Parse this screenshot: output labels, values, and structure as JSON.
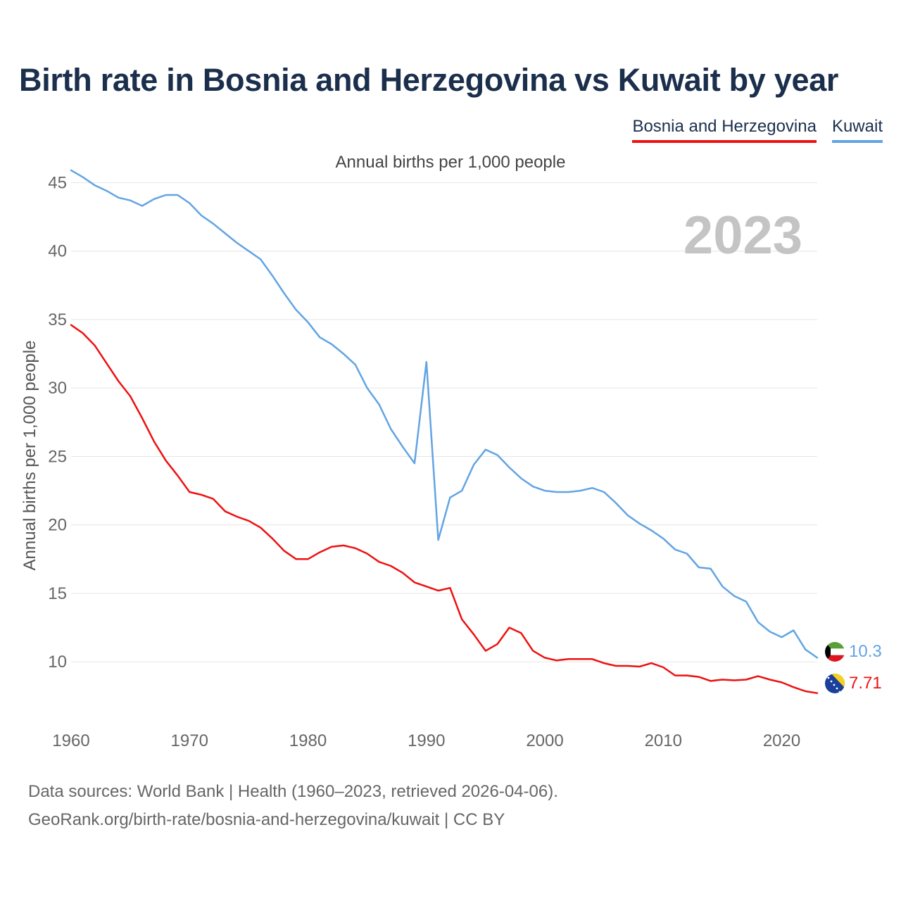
{
  "title": "Birth rate in Bosnia and Herzegovina vs Kuwait by year",
  "subtitle": "Annual births per 1,000 people",
  "year_watermark": "2023",
  "legend": [
    {
      "name": "Bosnia and Herzegovina",
      "color": "#ee1111"
    },
    {
      "name": "Kuwait",
      "color": "#62a4e3"
    }
  ],
  "source_lines": [
    "Data sources: World Bank | Health (1960–2023, retrieved 2026-04-06).",
    "GeoRank.org/birth-rate/bosnia-and-herzegovina/kuwait | CC BY"
  ],
  "chart_data": {
    "type": "line",
    "title": "Birth rate in Bosnia and Herzegovina vs Kuwait by year",
    "xlabel": "",
    "ylabel": "Annual births per 1,000 people",
    "xlim": [
      1960,
      2023
    ],
    "ylim": [
      6,
      46
    ],
    "x_ticks": [
      1960,
      1970,
      1980,
      1990,
      2000,
      2010,
      2020
    ],
    "y_ticks": [
      10,
      15,
      20,
      25,
      30,
      35,
      40,
      45
    ],
    "grid": true,
    "x": [
      1960,
      1961,
      1962,
      1963,
      1964,
      1965,
      1966,
      1967,
      1968,
      1969,
      1970,
      1971,
      1972,
      1973,
      1974,
      1975,
      1976,
      1977,
      1978,
      1979,
      1980,
      1981,
      1982,
      1983,
      1984,
      1985,
      1986,
      1987,
      1988,
      1989,
      1990,
      1991,
      1992,
      1993,
      1994,
      1995,
      1996,
      1997,
      1998,
      1999,
      2000,
      2001,
      2002,
      2003,
      2004,
      2005,
      2006,
      2007,
      2008,
      2009,
      2010,
      2011,
      2012,
      2013,
      2014,
      2015,
      2016,
      2017,
      2018,
      2019,
      2020,
      2021,
      2022,
      2023
    ],
    "series": [
      {
        "name": "Bosnia and Herzegovina",
        "color": "#ee1111",
        "end_label": "7.71",
        "values": [
          34.6,
          34.0,
          33.1,
          31.8,
          30.5,
          29.4,
          27.8,
          26.1,
          24.7,
          23.6,
          22.4,
          22.2,
          21.9,
          21.0,
          20.6,
          20.3,
          19.8,
          19.0,
          18.1,
          17.5,
          17.5,
          18.0,
          18.4,
          18.5,
          18.3,
          17.9,
          17.3,
          17.0,
          16.5,
          15.8,
          15.5,
          15.2,
          15.4,
          13.1,
          12.0,
          10.8,
          11.3,
          12.5,
          12.1,
          10.8,
          10.3,
          10.1,
          10.2,
          10.2,
          10.2,
          9.9,
          9.7,
          9.7,
          9.65,
          9.9,
          9.6,
          9.0,
          9.0,
          8.9,
          8.6,
          8.7,
          8.65,
          8.7,
          8.95,
          8.7,
          8.5,
          8.15,
          7.85,
          7.71
        ]
      },
      {
        "name": "Kuwait",
        "color": "#62a4e3",
        "end_label": "10.3",
        "values": [
          45.9,
          45.4,
          44.8,
          44.4,
          43.9,
          43.7,
          43.3,
          43.8,
          44.1,
          44.1,
          43.5,
          42.6,
          42.0,
          41.3,
          40.6,
          40.0,
          39.4,
          38.2,
          36.9,
          35.7,
          34.8,
          33.7,
          33.2,
          32.5,
          31.7,
          30.0,
          28.8,
          27.0,
          25.7,
          24.5,
          31.9,
          18.9,
          22.0,
          22.5,
          24.4,
          25.5,
          25.1,
          24.2,
          23.4,
          22.8,
          22.5,
          22.4,
          22.4,
          22.5,
          22.7,
          22.4,
          21.6,
          20.7,
          20.1,
          19.6,
          19.0,
          18.2,
          17.9,
          16.9,
          16.8,
          15.5,
          14.8,
          14.4,
          12.9,
          12.2,
          11.8,
          12.3,
          10.9,
          10.3
        ]
      }
    ]
  }
}
